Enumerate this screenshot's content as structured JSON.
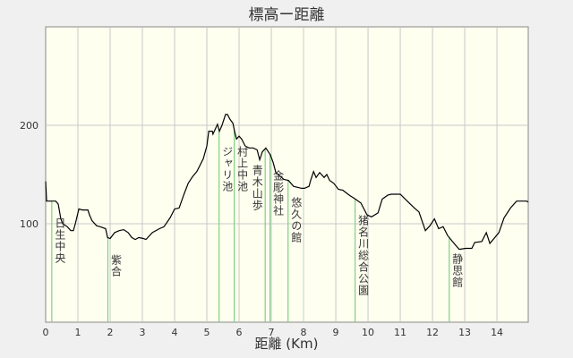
{
  "chart_data": {
    "type": "line",
    "title": "標高ー距離",
    "xlabel": "距離 (Km)",
    "ylabel": "",
    "xlim": [
      0,
      14.97
    ],
    "ylim": [
      0,
      300
    ],
    "xticks": [
      0,
      1,
      2,
      3,
      4,
      5,
      6,
      7,
      8,
      9,
      10,
      11,
      12,
      13,
      14
    ],
    "yticks": [
      100,
      200
    ],
    "grid": true,
    "colors": {
      "background": "#f0f0f0",
      "plot": "#fffff0",
      "grid": "#c8c8c8",
      "line": "#000000",
      "landmark": "#80d080",
      "text": "#333333"
    },
    "series": [
      {
        "x": [
          0,
          0.03,
          0.31,
          0.39,
          0.47,
          0.53,
          0.67,
          0.78,
          0.86,
          0.92,
          1.03,
          1.14,
          1.31,
          1.36,
          1.44,
          1.58,
          1.69,
          1.86,
          1.92,
          2.0,
          2.14,
          2.28,
          2.42,
          2.56,
          2.67,
          2.78,
          2.89,
          3.03,
          3.11,
          3.31,
          3.53,
          3.67,
          3.86,
          4.0,
          4.14,
          4.28,
          4.42,
          4.56,
          4.69,
          4.89,
          5.0,
          5.06,
          5.17,
          5.19,
          5.33,
          5.39,
          5.47,
          5.58,
          5.64,
          5.72,
          5.81,
          5.86,
          5.92,
          6.0,
          6.08,
          6.19,
          6.31,
          6.44,
          6.56,
          6.64,
          6.72,
          6.83,
          6.97,
          7.06,
          7.14,
          7.39,
          7.53,
          7.69,
          7.94,
          8.03,
          8.17,
          8.22,
          8.31,
          8.39,
          8.5,
          8.64,
          8.72,
          8.81,
          8.94,
          9.08,
          9.22,
          9.42,
          9.61,
          9.78,
          9.97,
          10.11,
          10.31,
          10.44,
          10.61,
          10.72,
          11.0,
          11.28,
          11.44,
          11.58,
          11.78,
          11.92,
          12.06,
          12.19,
          12.33,
          12.47,
          12.67,
          12.83,
          13.03,
          13.22,
          13.31,
          13.53,
          13.67,
          13.78,
          14.06,
          14.22,
          14.42,
          14.61,
          14.92,
          14.97
        ],
        "y": [
          143,
          123,
          123,
          120,
          105,
          100,
          97,
          93,
          93,
          100,
          115,
          114,
          114,
          109,
          103,
          98,
          97,
          95,
          86,
          85,
          91,
          93,
          94,
          91,
          86,
          84,
          86,
          85,
          84,
          91,
          95,
          97,
          106,
          115,
          116,
          129,
          141,
          148,
          153,
          166,
          179,
          194,
          194,
          191,
          201,
          194,
          200,
          211,
          211,
          206,
          202,
          194,
          186,
          189,
          186,
          179,
          177,
          177,
          175,
          165,
          173,
          177,
          170,
          162,
          152,
          145,
          144,
          138,
          136,
          136,
          138,
          144,
          153,
          147,
          152,
          147,
          150,
          144,
          141,
          135,
          134,
          129,
          125,
          121,
          109,
          107,
          111,
          125,
          129,
          130,
          130,
          121,
          116,
          112,
          93,
          98,
          105,
          95,
          97,
          88,
          80,
          74,
          75,
          75,
          81,
          82,
          91,
          80,
          91,
          106,
          116,
          123,
          123,
          122
        ]
      }
    ],
    "landmarks": [
      {
        "x": 0.19,
        "label": "日生中央"
      },
      {
        "x": 1.93,
        "label": "紫合"
      },
      {
        "x": 5.38,
        "label": "ジャリ池"
      },
      {
        "x": 5.85,
        "label": "村上中池"
      },
      {
        "x": 6.81,
        "label": "青木山歩"
      },
      {
        "x": 6.96,
        "label": "金彫神社"
      },
      {
        "x": 7.52,
        "label": "悠久の館"
      },
      {
        "x": 9.6,
        "label": "猪名川総合公園"
      },
      {
        "x": 12.52,
        "label": "静思館"
      }
    ]
  }
}
